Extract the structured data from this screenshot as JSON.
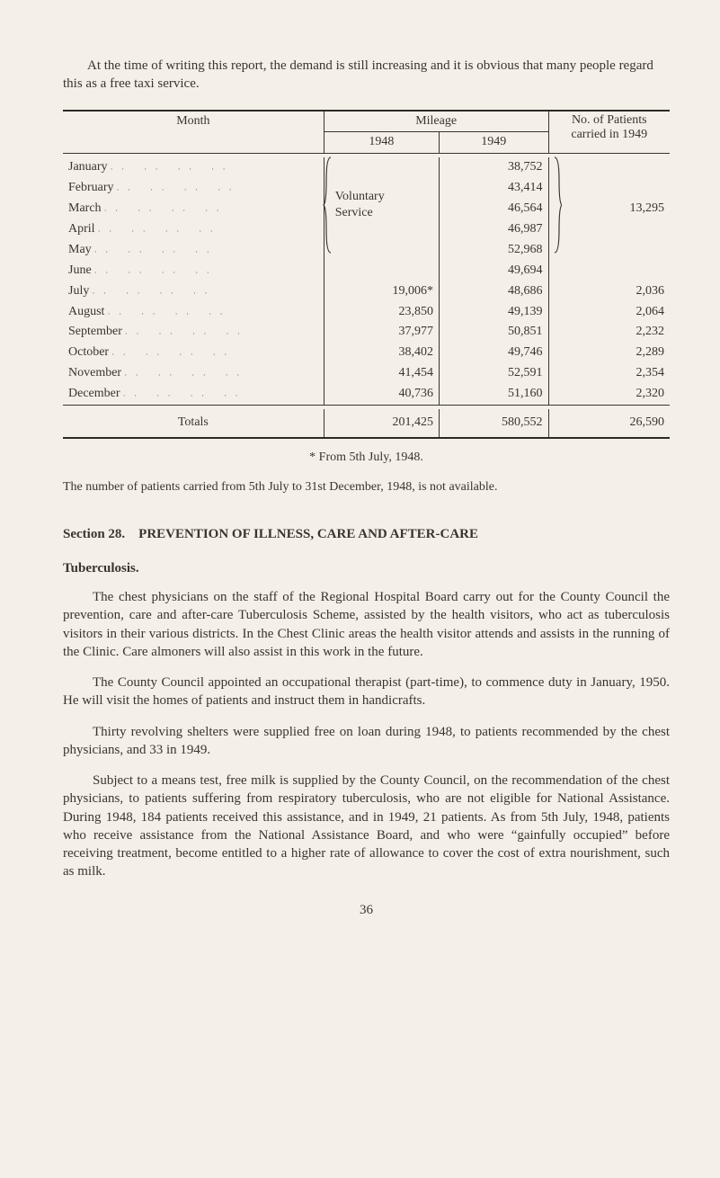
{
  "intro": "At the time of writing this report, the demand is still increasing and it is obvious that many people regard this as a free taxi service.",
  "table": {
    "header": {
      "month": "Month",
      "mileage": "Mileage",
      "y1948": "1948",
      "y1949": "1949",
      "patients_l1": "No. of Patients",
      "patients_l2": "carried in 1949"
    },
    "voluntary_l1": "Voluntary",
    "voluntary_l2": "Service",
    "rows": [
      {
        "month": "January",
        "m1948": "",
        "m1949": "38,752",
        "pat": ""
      },
      {
        "month": "February",
        "m1948": "",
        "m1949": "43,414",
        "pat": ""
      },
      {
        "month": "March",
        "m1948": "",
        "m1949": "46,564",
        "pat": "13,295"
      },
      {
        "month": "April",
        "m1948": "",
        "m1949": "46,987",
        "pat": ""
      },
      {
        "month": "May",
        "m1948": "",
        "m1949": "52,968",
        "pat": ""
      },
      {
        "month": "June",
        "m1948": "",
        "m1949": "49,694",
        "pat": ""
      },
      {
        "month": "July",
        "m1948": "19,006*",
        "m1949": "48,686",
        "pat": "2,036"
      },
      {
        "month": "August",
        "m1948": "23,850",
        "m1949": "49,139",
        "pat": "2,064"
      },
      {
        "month": "September",
        "m1948": "37,977",
        "m1949": "50,851",
        "pat": "2,232"
      },
      {
        "month": "October",
        "m1948": "38,402",
        "m1949": "49,746",
        "pat": "2,289"
      },
      {
        "month": "November",
        "m1948": "41,454",
        "m1949": "52,591",
        "pat": "2,354"
      },
      {
        "month": "December",
        "m1948": "40,736",
        "m1949": "51,160",
        "pat": "2,320"
      }
    ],
    "totals": {
      "label": "Totals",
      "m1948": "201,425",
      "m1949": "580,552",
      "pat": "26,590"
    }
  },
  "footnote": "* From 5th July, 1948.",
  "note": "The number of patients carried from 5th July to 31st December, 1948, is not available.",
  "section_title_a": "Section 28.",
  "section_title_b": "PREVENTION OF ILLNESS, CARE AND AFTER-CARE",
  "subhead": "Tuberculosis.",
  "p1": "The chest physicians on the staff of the Regional Hospital Board carry out for the County Council the prevention, care and after-care Tuberculosis Scheme, assisted by the health visitors, who act as tuber­culosis visitors in their various districts. In the Chest Clinic areas the health visitor attends and assists in the running of the Clinic. Care almoners will also assist in this work in the future.",
  "p2": "The County Council appointed an occupational therapist (part-time), to commence duty in January, 1950. He will visit the homes of patients and instruct them in handicrafts.",
  "p3": "Thirty revolving shelters were supplied free on loan during 1948, to patients recommended by the chest physicians, and 33 in 1949.",
  "p4": "Subject to a means test, free milk is supplied by the County Council, on the recommendation of the chest physicians, to patients suffering from respiratory tuberculosis, who are not eligible for National Assistance. During 1948, 184 patients received this assistance, and in 1949, 21 patients. As from 5th July, 1948, patients who receive assistance from the National Assistance Board, and who were “gainfully occupied” before receiving treatment, become entitled to a higher rate of allowance to cover the cost of extra nourishment, such as milk.",
  "pagenum": "36",
  "colors": {
    "text": "#3a342e",
    "background": "#f4f0e8",
    "rule": "#2d2a24"
  },
  "fontsize": {
    "body_pt": 11,
    "table_pt": 10
  }
}
